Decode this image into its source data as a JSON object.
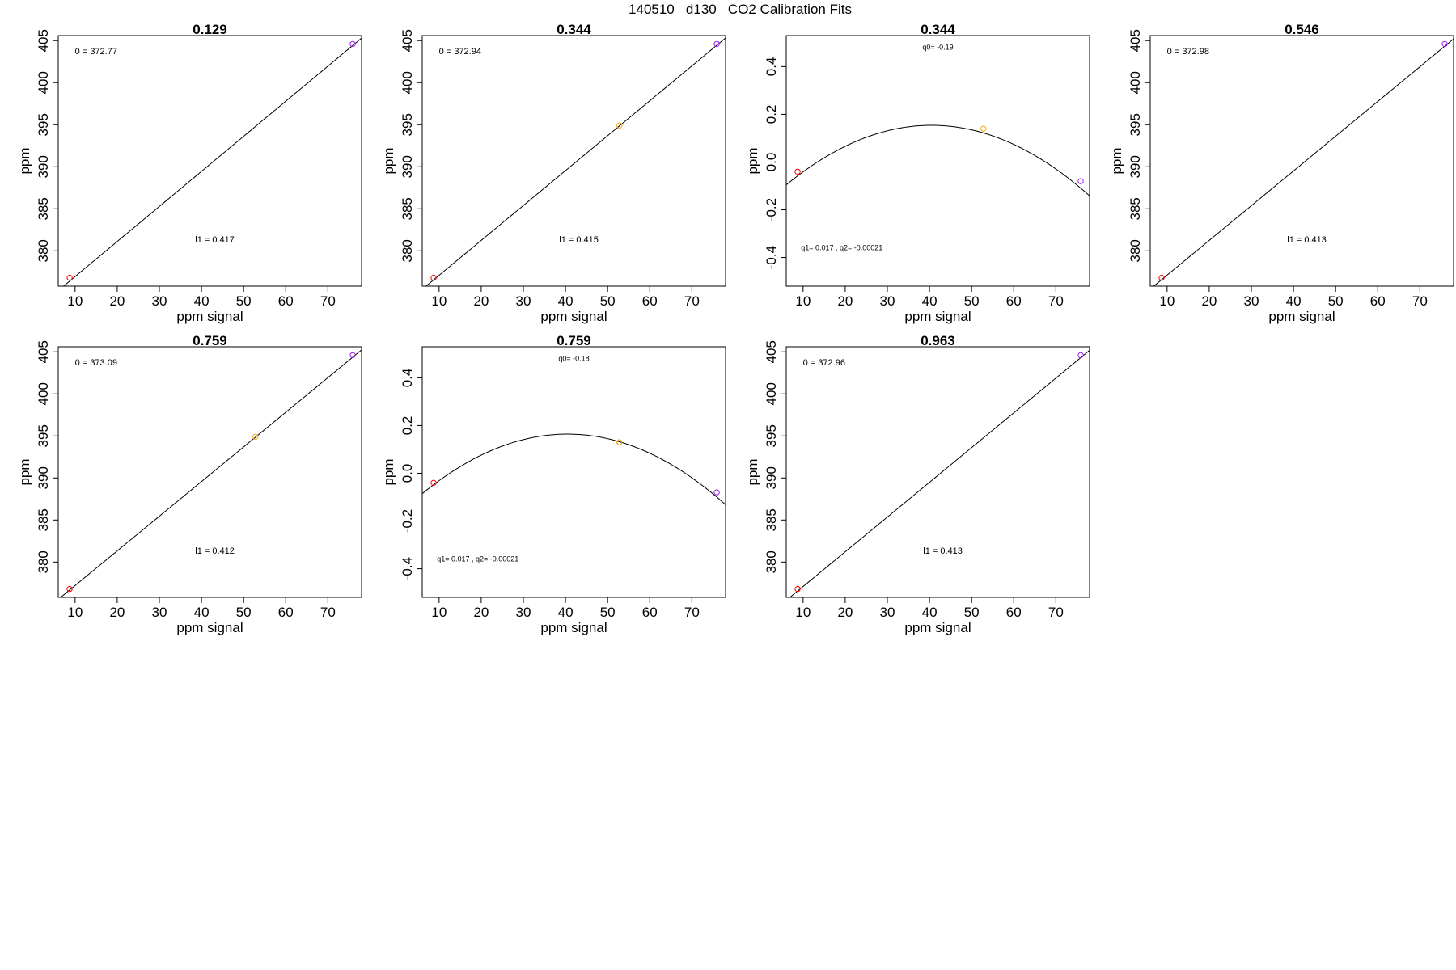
{
  "figure": {
    "title": "140510   d130   CO2 Calibration Fits"
  },
  "colors": {
    "low": "#ff0000",
    "mid": "#ffa500",
    "high": "#a020f0",
    "line": "#000000"
  },
  "chart_data": [
    {
      "type": "scatter",
      "fit": "linear",
      "title": "0.129",
      "xlabel": "ppm signal",
      "ylabel": "ppm",
      "xlim": [
        6,
        78
      ],
      "ylim": [
        375.8,
        405.6
      ],
      "xticks": [
        10,
        20,
        30,
        40,
        50,
        60,
        70
      ],
      "yticks": [
        380,
        385,
        390,
        395,
        400,
        405
      ],
      "points": [
        {
          "x": 8.7,
          "y": 376.8,
          "color": "low"
        },
        {
          "x": 75.9,
          "y": 404.6,
          "color": "high"
        }
      ],
      "intercept": 372.77,
      "slope": 0.417,
      "annotations": [
        {
          "text": "l0 =  372.77",
          "x": 9.5,
          "y": 403.4,
          "anchor": "start",
          "size": "normal"
        },
        {
          "text": "l1 =  0.417",
          "x": 38.5,
          "y": 381.0,
          "anchor": "start",
          "size": "normal"
        }
      ]
    },
    {
      "type": "scatter",
      "fit": "linear",
      "title": "0.344",
      "xlabel": "ppm signal",
      "ylabel": "ppm",
      "xlim": [
        6,
        78
      ],
      "ylim": [
        375.8,
        405.6
      ],
      "xticks": [
        10,
        20,
        30,
        40,
        50,
        60,
        70
      ],
      "yticks": [
        380,
        385,
        390,
        395,
        400,
        405
      ],
      "points": [
        {
          "x": 8.7,
          "y": 376.8,
          "color": "low"
        },
        {
          "x": 52.8,
          "y": 394.9,
          "color": "mid"
        },
        {
          "x": 75.9,
          "y": 404.6,
          "color": "high"
        }
      ],
      "intercept": 372.94,
      "slope": 0.415,
      "annotations": [
        {
          "text": "l0 =  372.94",
          "x": 9.5,
          "y": 403.4,
          "anchor": "start",
          "size": "normal"
        },
        {
          "text": "l1 =  0.415",
          "x": 38.5,
          "y": 381.0,
          "anchor": "start",
          "size": "normal"
        }
      ]
    },
    {
      "type": "scatter",
      "fit": "quadratic",
      "title": "0.344",
      "xlabel": "ppm signal",
      "ylabel": "ppm",
      "xlim": [
        6,
        78
      ],
      "ylim": [
        -0.52,
        0.53
      ],
      "xticks": [
        10,
        20,
        30,
        40,
        50,
        60,
        70
      ],
      "yticks": [
        -0.4,
        -0.2,
        0.0,
        0.2,
        0.4
      ],
      "points": [
        {
          "x": 8.7,
          "y": -0.04,
          "color": "low"
        },
        {
          "x": 52.8,
          "y": 0.14,
          "color": "mid"
        },
        {
          "x": 75.9,
          "y": -0.08,
          "color": "high"
        }
      ],
      "q0": -0.19,
      "q1": 0.017,
      "q2": -0.00021,
      "annotations": [
        {
          "text": "q0= -0.19",
          "x": 42,
          "y": 0.47,
          "anchor": "middle",
          "size": "small"
        },
        {
          "text": "q1= 0.017 , q2= -0.00021",
          "x": 9.5,
          "y": -0.37,
          "anchor": "start",
          "size": "small"
        }
      ]
    },
    {
      "type": "scatter",
      "fit": "linear",
      "title": "0.546",
      "xlabel": "ppm signal",
      "ylabel": "ppm",
      "xlim": [
        6,
        78
      ],
      "ylim": [
        375.8,
        405.6
      ],
      "xticks": [
        10,
        20,
        30,
        40,
        50,
        60,
        70
      ],
      "yticks": [
        380,
        385,
        390,
        395,
        400,
        405
      ],
      "points": [
        {
          "x": 8.7,
          "y": 376.8,
          "color": "low"
        },
        {
          "x": 75.9,
          "y": 404.6,
          "color": "high"
        }
      ],
      "intercept": 372.98,
      "slope": 0.413,
      "annotations": [
        {
          "text": "l0 =  372.98",
          "x": 9.5,
          "y": 403.4,
          "anchor": "start",
          "size": "normal"
        },
        {
          "text": "l1 =  0.413",
          "x": 38.5,
          "y": 381.0,
          "anchor": "start",
          "size": "normal"
        }
      ]
    },
    {
      "type": "scatter",
      "fit": "linear",
      "title": "0.759",
      "xlabel": "ppm signal",
      "ylabel": "ppm",
      "xlim": [
        6,
        78
      ],
      "ylim": [
        375.8,
        405.6
      ],
      "xticks": [
        10,
        20,
        30,
        40,
        50,
        60,
        70
      ],
      "yticks": [
        380,
        385,
        390,
        395,
        400,
        405
      ],
      "points": [
        {
          "x": 8.7,
          "y": 376.8,
          "color": "low"
        },
        {
          "x": 52.8,
          "y": 394.9,
          "color": "mid"
        },
        {
          "x": 75.9,
          "y": 404.6,
          "color": "high"
        }
      ],
      "intercept": 373.09,
      "slope": 0.412,
      "annotations": [
        {
          "text": "l0 =  373.09",
          "x": 9.5,
          "y": 403.4,
          "anchor": "start",
          "size": "normal"
        },
        {
          "text": "l1 =  0.412",
          "x": 38.5,
          "y": 381.0,
          "anchor": "start",
          "size": "normal"
        }
      ]
    },
    {
      "type": "scatter",
      "fit": "quadratic",
      "title": "0.759",
      "xlabel": "ppm signal",
      "ylabel": "ppm",
      "xlim": [
        6,
        78
      ],
      "ylim": [
        -0.52,
        0.53
      ],
      "xticks": [
        10,
        20,
        30,
        40,
        50,
        60,
        70
      ],
      "yticks": [
        -0.4,
        -0.2,
        0.0,
        0.2,
        0.4
      ],
      "points": [
        {
          "x": 8.7,
          "y": -0.04,
          "color": "low"
        },
        {
          "x": 52.8,
          "y": 0.13,
          "color": "mid"
        },
        {
          "x": 75.9,
          "y": -0.08,
          "color": "high"
        }
      ],
      "q0": -0.18,
      "q1": 0.017,
      "q2": -0.00021,
      "annotations": [
        {
          "text": "q0= -0.18",
          "x": 42,
          "y": 0.47,
          "anchor": "middle",
          "size": "small"
        },
        {
          "text": "q1= 0.017 , q2= -0.00021",
          "x": 9.5,
          "y": -0.37,
          "anchor": "start",
          "size": "small"
        }
      ]
    },
    {
      "type": "scatter",
      "fit": "linear",
      "title": "0.963",
      "xlabel": "ppm signal",
      "ylabel": "ppm",
      "xlim": [
        6,
        78
      ],
      "ylim": [
        375.8,
        405.6
      ],
      "xticks": [
        10,
        20,
        30,
        40,
        50,
        60,
        70
      ],
      "yticks": [
        380,
        385,
        390,
        395,
        400,
        405
      ],
      "points": [
        {
          "x": 8.7,
          "y": 376.8,
          "color": "low"
        },
        {
          "x": 75.9,
          "y": 404.6,
          "color": "high"
        }
      ],
      "intercept": 372.96,
      "slope": 0.413,
      "annotations": [
        {
          "text": "l0 =  372.96",
          "x": 9.5,
          "y": 403.4,
          "anchor": "start",
          "size": "normal"
        },
        {
          "text": "l1 =  0.413",
          "x": 38.5,
          "y": 381.0,
          "anchor": "start",
          "size": "normal"
        }
      ]
    }
  ]
}
